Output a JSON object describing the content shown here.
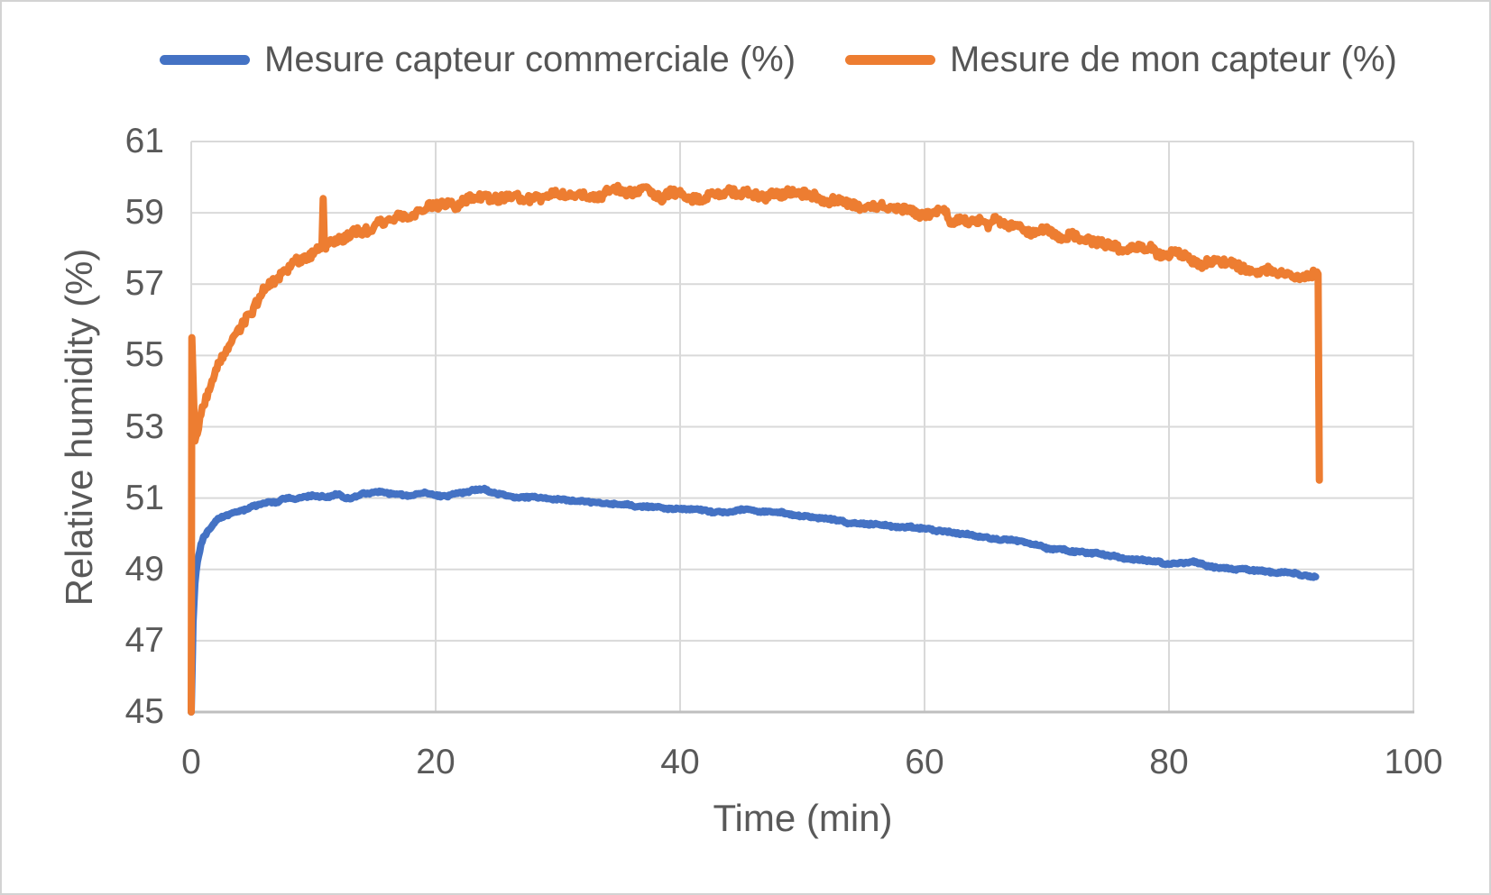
{
  "figure": {
    "background": "#FFFFFF",
    "border_color": "#D3D3D3"
  },
  "chart_data": {
    "type": "line",
    "title": "",
    "xlabel": "Time (min)",
    "ylabel": "Relative humidity (%)",
    "xlim": [
      0,
      100
    ],
    "ylim": [
      45,
      61
    ],
    "xticks": [
      0,
      20,
      40,
      60,
      80,
      100
    ],
    "yticks": [
      45,
      47,
      49,
      51,
      53,
      55,
      57,
      59,
      61
    ],
    "grid": true,
    "legend_position": "top",
    "colors": {
      "grid": "#D9D9D9",
      "axis_line": "#BFBFBF",
      "tick_text": "#595959"
    },
    "series": [
      {
        "name": "Mesure capteur commerciale (%)",
        "color": "#4472C4",
        "noise_amplitude": 0.05,
        "points": [
          [
            0,
            45
          ],
          [
            0.15,
            47.5
          ],
          [
            0.3,
            48.6
          ],
          [
            0.5,
            49.2
          ],
          [
            0.8,
            49.7
          ],
          [
            1,
            49.9
          ],
          [
            1.5,
            50.15
          ],
          [
            2,
            50.35
          ],
          [
            2.5,
            50.45
          ],
          [
            3,
            50.5
          ],
          [
            4,
            50.65
          ],
          [
            5,
            50.75
          ],
          [
            6,
            50.85
          ],
          [
            7,
            50.9
          ],
          [
            8,
            51.0
          ],
          [
            9,
            51.0
          ],
          [
            10,
            51.05
          ],
          [
            11,
            51.05
          ],
          [
            12,
            51.1
          ],
          [
            13,
            51.0
          ],
          [
            14,
            51.1
          ],
          [
            15,
            51.15
          ],
          [
            16,
            51.15
          ],
          [
            17,
            51.1
          ],
          [
            18,
            51.05
          ],
          [
            19,
            51.15
          ],
          [
            20,
            51.1
          ],
          [
            21,
            51.05
          ],
          [
            22,
            51.15
          ],
          [
            23,
            51.2
          ],
          [
            24,
            51.25
          ],
          [
            25,
            51.1
          ],
          [
            26,
            51.05
          ],
          [
            28,
            51.0
          ],
          [
            30,
            50.95
          ],
          [
            32,
            50.9
          ],
          [
            34,
            50.85
          ],
          [
            36,
            50.8
          ],
          [
            38,
            50.75
          ],
          [
            40,
            50.7
          ],
          [
            42,
            50.65
          ],
          [
            44,
            50.6
          ],
          [
            45,
            50.65
          ],
          [
            46,
            50.65
          ],
          [
            48,
            50.6
          ],
          [
            50,
            50.5
          ],
          [
            52,
            50.4
          ],
          [
            54,
            50.3
          ],
          [
            56,
            50.25
          ],
          [
            58,
            50.2
          ],
          [
            60,
            50.15
          ],
          [
            62,
            50.05
          ],
          [
            64,
            49.95
          ],
          [
            66,
            49.85
          ],
          [
            68,
            49.8
          ],
          [
            70,
            49.6
          ],
          [
            72,
            49.5
          ],
          [
            74,
            49.45
          ],
          [
            76,
            49.35
          ],
          [
            78,
            49.25
          ],
          [
            80,
            49.15
          ],
          [
            81,
            49.2
          ],
          [
            82,
            49.2
          ],
          [
            83,
            49.1
          ],
          [
            84,
            49.05
          ],
          [
            86,
            49.0
          ],
          [
            88,
            48.95
          ],
          [
            90,
            48.9
          ],
          [
            92,
            48.8
          ]
        ]
      },
      {
        "name": "Mesure de mon capteur (%)",
        "color": "#ED7D31",
        "noise_amplitude": 0.2,
        "points": [
          [
            0,
            45
          ],
          [
            0.05,
            55.5
          ],
          [
            0.3,
            52.6
          ],
          [
            0.6,
            52.9
          ],
          [
            1,
            53.6
          ],
          [
            1.5,
            54.1
          ],
          [
            2,
            54.6
          ],
          [
            2.5,
            55.0
          ],
          [
            3,
            55.3
          ],
          [
            3.5,
            55.55
          ],
          [
            4,
            55.8
          ],
          [
            4.5,
            56.05
          ],
          [
            5,
            56.3
          ],
          [
            6,
            56.9
          ],
          [
            7,
            57.2
          ],
          [
            8,
            57.45
          ],
          [
            9,
            57.65
          ],
          [
            10,
            57.95
          ],
          [
            10.7,
            58.05
          ],
          [
            10.8,
            59.4
          ],
          [
            10.9,
            58.05
          ],
          [
            11.5,
            58.15
          ],
          [
            12,
            58.25
          ],
          [
            13,
            58.4
          ],
          [
            14,
            58.55
          ],
          [
            15,
            58.65
          ],
          [
            16,
            58.75
          ],
          [
            17,
            58.9
          ],
          [
            18,
            59.0
          ],
          [
            19,
            59.1
          ],
          [
            20,
            59.15
          ],
          [
            21,
            59.2
          ],
          [
            22,
            59.3
          ],
          [
            23,
            59.35
          ],
          [
            24,
            59.4
          ],
          [
            25,
            59.42
          ],
          [
            26,
            59.45
          ],
          [
            27,
            59.45
          ],
          [
            28,
            59.5
          ],
          [
            29,
            59.5
          ],
          [
            30,
            59.55
          ],
          [
            31,
            59.5
          ],
          [
            32,
            59.5
          ],
          [
            33,
            59.52
          ],
          [
            34,
            59.55
          ],
          [
            35,
            59.55
          ],
          [
            36,
            59.6
          ],
          [
            37,
            59.55
          ],
          [
            38,
            59.5
          ],
          [
            39,
            59.5
          ],
          [
            40,
            59.5
          ],
          [
            41,
            59.45
          ],
          [
            42,
            59.45
          ],
          [
            43,
            59.48
          ],
          [
            44,
            59.5
          ],
          [
            45,
            59.48
          ],
          [
            46,
            59.5
          ],
          [
            47,
            59.5
          ],
          [
            48,
            59.55
          ],
          [
            49,
            59.5
          ],
          [
            50,
            59.45
          ],
          [
            51,
            59.4
          ],
          [
            52,
            59.35
          ],
          [
            53,
            59.3
          ],
          [
            54,
            59.25
          ],
          [
            55,
            59.22
          ],
          [
            56,
            59.2
          ],
          [
            57,
            59.15
          ],
          [
            58,
            59.1
          ],
          [
            59,
            59.0
          ],
          [
            60,
            58.95
          ],
          [
            61,
            59.05
          ],
          [
            62,
            58.85
          ],
          [
            63,
            58.8
          ],
          [
            64,
            58.8
          ],
          [
            66,
            58.7
          ],
          [
            68,
            58.6
          ],
          [
            70,
            58.45
          ],
          [
            72,
            58.3
          ],
          [
            74,
            58.2
          ],
          [
            76,
            58.05
          ],
          [
            78,
            57.95
          ],
          [
            80,
            57.9
          ],
          [
            82,
            57.7
          ],
          [
            84,
            57.55
          ],
          [
            86,
            57.45
          ],
          [
            88,
            57.35
          ],
          [
            90,
            57.25
          ],
          [
            91,
            57.2
          ],
          [
            91.8,
            57.35
          ],
          [
            92.2,
            57.3
          ],
          [
            92.3,
            51.5
          ]
        ]
      }
    ]
  }
}
